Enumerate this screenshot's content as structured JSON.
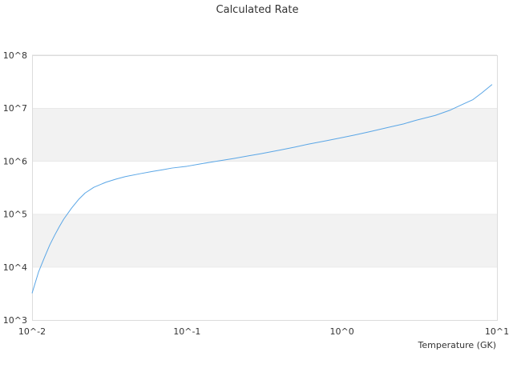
{
  "chart_data": {
    "type": "line",
    "title": "Calculated Rate",
    "xlabel": "Temperature (GK)",
    "ylabel": "",
    "x_scale": "log",
    "y_scale": "log",
    "xlim": [
      0.01,
      10
    ],
    "ylim": [
      1000,
      100000000
    ],
    "x_ticks": [
      {
        "value": 0.01,
        "label": "10^-2"
      },
      {
        "value": 0.1,
        "label": "10^-1"
      },
      {
        "value": 1,
        "label": "10^0"
      },
      {
        "value": 10,
        "label": "10^1"
      }
    ],
    "y_ticks": [
      {
        "value": 1000,
        "label": "10^3"
      },
      {
        "value": 10000,
        "label": "10^4"
      },
      {
        "value": 100000,
        "label": "10^5"
      },
      {
        "value": 1000000,
        "label": "10^6"
      },
      {
        "value": 10000000,
        "label": "10^7"
      },
      {
        "value": 100000000,
        "label": "10^8"
      }
    ],
    "grid": "alternating-bands",
    "series": [
      {
        "name": "",
        "color": "#5aa6e6",
        "x": [
          0.01,
          0.011,
          0.012,
          0.013,
          0.014,
          0.015,
          0.016,
          0.018,
          0.02,
          0.022,
          0.025,
          0.03,
          0.035,
          0.04,
          0.05,
          0.06,
          0.07,
          0.08,
          0.1,
          0.12,
          0.15,
          0.2,
          0.25,
          0.3,
          0.4,
          0.5,
          0.6,
          0.8,
          1.0,
          1.2,
          1.5,
          2.0,
          2.5,
          3.0,
          4.0,
          5.0,
          6.0,
          7.0,
          8.0,
          9.3
        ],
        "y": [
          3200,
          8000,
          15000,
          26000,
          40000,
          58000,
          80000,
          130000,
          190000,
          250000,
          320000,
          400000,
          460000,
          510000,
          580000,
          640000,
          690000,
          740000,
          800000,
          880000,
          980000,
          1120000,
          1260000,
          1380000,
          1620000,
          1850000,
          2080000,
          2440000,
          2780000,
          3100000,
          3580000,
          4350000,
          5050000,
          5900000,
          7300000,
          9200000,
          11800000,
          14500000,
          19500000,
          28000000
        ]
      }
    ]
  }
}
